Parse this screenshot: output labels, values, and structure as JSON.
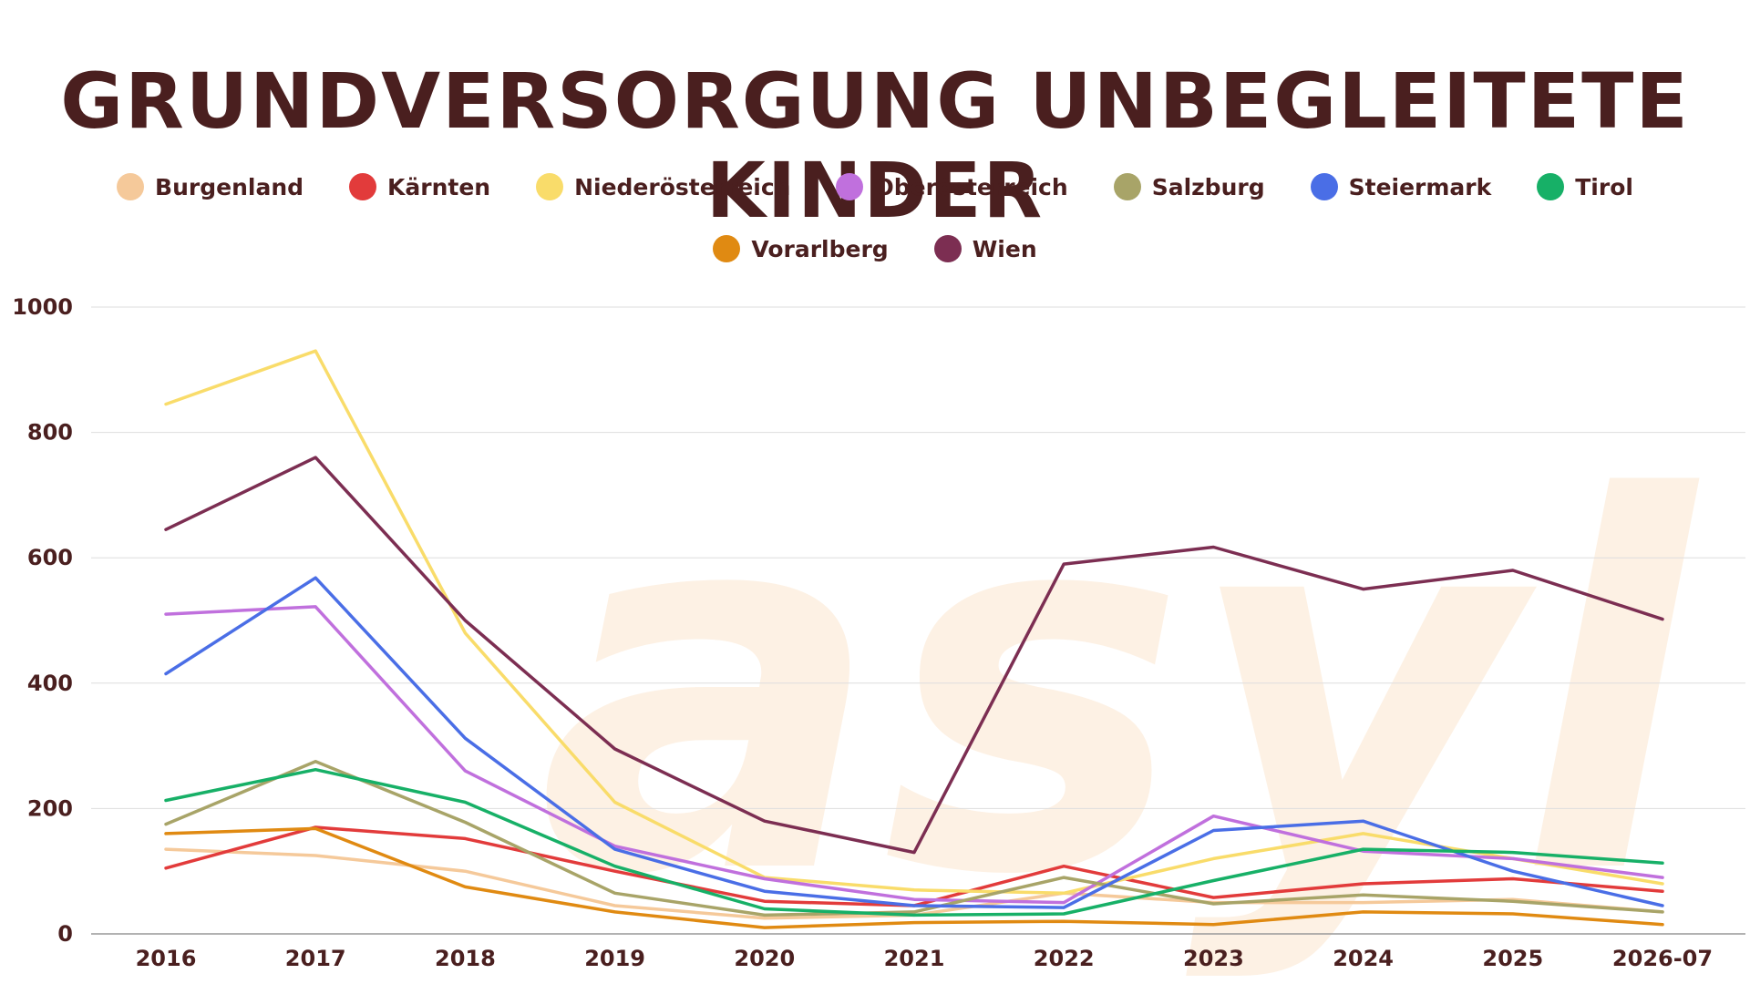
{
  "chart_data": {
    "type": "line",
    "title": "GRUNDVERSORGUNG UNBEGLEITETE KINDER",
    "watermark": "asyl",
    "xlabel": "",
    "ylabel": "",
    "ylim": [
      0,
      1000
    ],
    "yticks": [
      "0",
      "200",
      "400",
      "600",
      "800",
      "1000"
    ],
    "grid": true,
    "legend_position": "top",
    "categories": [
      "2016",
      "2017",
      "2018",
      "2019",
      "2020",
      "2021",
      "2022",
      "2023",
      "2024",
      "2025",
      "2026-07"
    ],
    "series": [
      {
        "name": "Burgenland",
        "color": "#f5c99a",
        "values": [
          135,
          125,
          100,
          45,
          25,
          30,
          65,
          50,
          50,
          55,
          35
        ]
      },
      {
        "name": "Kärnten",
        "color": "#e23b3b",
        "values": [
          105,
          170,
          152,
          100,
          52,
          45,
          108,
          58,
          80,
          88,
          68
        ]
      },
      {
        "name": "Niederösterreich",
        "color": "#f9dc6a",
        "values": [
          845,
          930,
          480,
          210,
          90,
          70,
          65,
          120,
          160,
          120,
          80
        ]
      },
      {
        "name": "Oberösterreich",
        "color": "#c070dd",
        "values": [
          510,
          522,
          260,
          140,
          88,
          55,
          50,
          188,
          132,
          120,
          90
        ]
      },
      {
        "name": "Salzburg",
        "color": "#a8a468",
        "values": [
          175,
          275,
          178,
          65,
          30,
          35,
          90,
          48,
          62,
          52,
          35
        ]
      },
      {
        "name": "Steiermark",
        "color": "#4a6ee6",
        "values": [
          415,
          568,
          312,
          135,
          68,
          45,
          42,
          165,
          180,
          100,
          45
        ]
      },
      {
        "name": "Tirol",
        "color": "#17b067",
        "values": [
          213,
          262,
          210,
          108,
          40,
          30,
          32,
          85,
          135,
          130,
          113
        ]
      },
      {
        "name": "Vorarlberg",
        "color": "#e08a12",
        "values": [
          160,
          168,
          75,
          35,
          10,
          18,
          20,
          15,
          35,
          32,
          15
        ]
      },
      {
        "name": "Wien",
        "color": "#7c2e52",
        "values": [
          645,
          760,
          500,
          295,
          180,
          130,
          590,
          617,
          550,
          580,
          502
        ]
      }
    ]
  }
}
